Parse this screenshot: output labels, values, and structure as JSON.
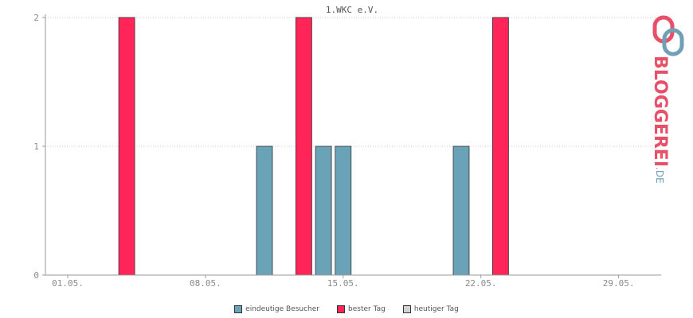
{
  "chart_data": {
    "type": "bar",
    "title": "1.WKC e.V.",
    "x_tick_labels": [
      "01.05.",
      "08.05.",
      "15.05.",
      "22.05.",
      "29.05."
    ],
    "x_tick_days": [
      1,
      8,
      15,
      22,
      29
    ],
    "x_range_days": [
      0,
      31
    ],
    "y_ticks": [
      0,
      1,
      2
    ],
    "ylim": [
      0,
      2
    ],
    "grid": true,
    "legend_position": "bottom-center",
    "series": [
      {
        "name": "eindeutige Besucher",
        "color": "#6aa3b8",
        "points": [
          {
            "day": 11,
            "value": 1
          },
          {
            "day": 14,
            "value": 1
          },
          {
            "day": 15,
            "value": 1
          },
          {
            "day": 21,
            "value": 1
          }
        ]
      },
      {
        "name": "bester Tag",
        "color": "#ff2558",
        "points": [
          {
            "day": 4,
            "value": 2
          },
          {
            "day": 13,
            "value": 2
          },
          {
            "day": 23,
            "value": 2
          }
        ]
      },
      {
        "name": "heutiger Tag",
        "color": "#d3d3d3",
        "points": []
      }
    ]
  },
  "logo": {
    "text": "BLOGGEREI",
    "suffix": ".DE",
    "colors": {
      "main": "#e8506a",
      "accent": "#6fa0b8"
    }
  }
}
